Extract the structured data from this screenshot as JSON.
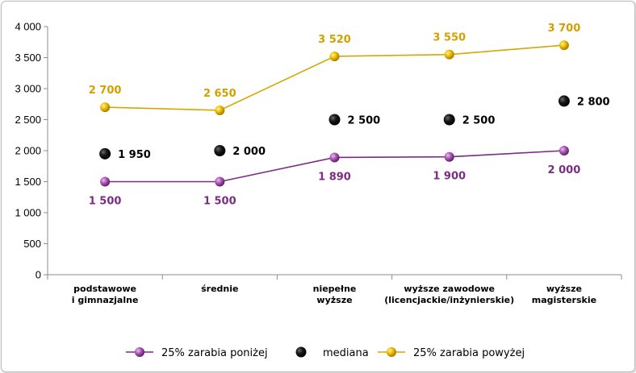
{
  "chart_data": {
    "type": "line",
    "categories": [
      [
        "podstawowe",
        "i gimnazjalne"
      ],
      [
        "średnie"
      ],
      [
        "niepełne",
        "wyższe"
      ],
      [
        "wyższe zawodowe",
        "(licencjackie/inżynierskie)"
      ],
      [
        "wyższe",
        "magisterskie"
      ]
    ],
    "ylim": [
      0,
      4000
    ],
    "yticks": [
      0,
      500,
      1000,
      1500,
      2000,
      2500,
      3000,
      3500,
      4000
    ],
    "ytick_labels": [
      "0",
      "500",
      "1 000",
      "1 500",
      "2 000",
      "2 500",
      "3 000",
      "3 500",
      "4 000"
    ],
    "series": [
      {
        "name": "25% zarabia poniżej",
        "key": "low",
        "values": [
          1500,
          1500,
          1890,
          1900,
          2000
        ],
        "labels": [
          "1 500",
          "1 500",
          "1 890",
          "1 900",
          "2 000"
        ],
        "color": "#7b2c83",
        "marker_color": "#a64bb0",
        "line": true,
        "label_position": "below"
      },
      {
        "name": "mediana",
        "key": "median",
        "values": [
          1950,
          2000,
          2500,
          2500,
          2800
        ],
        "labels": [
          "1 950",
          "2 000",
          "2 500",
          "2 500",
          "2 800"
        ],
        "color": "#000000",
        "marker_color": "#1a1a1a",
        "line": false,
        "label_position": "right"
      },
      {
        "name": "25% zarabia powyżej",
        "key": "high",
        "values": [
          2700,
          2650,
          3520,
          3550,
          3700
        ],
        "labels": [
          "2 700",
          "2 650",
          "3 520",
          "3 550",
          "3 700"
        ],
        "color": "#d4a800",
        "marker_color": "#f0c000",
        "line": true,
        "label_position": "above"
      }
    ],
    "legend_position": "bottom",
    "grid": false
  }
}
